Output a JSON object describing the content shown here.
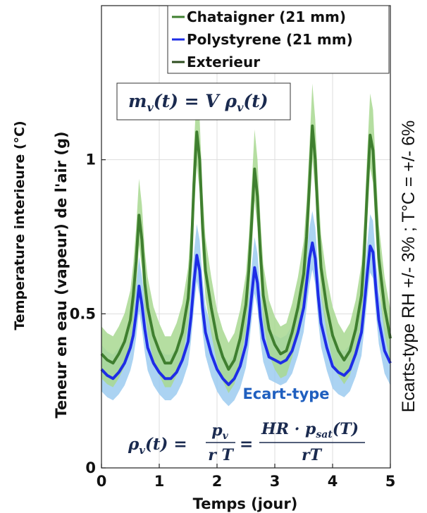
{
  "chart_data": {
    "type": "line",
    "xlabel": "Temps (jour)",
    "ylabel": "Teneur en eau (vapeur) de l'air (g)",
    "ylabel_behind": "Temperature interieure (°C)",
    "right_note": "Ecarts-type RH  +/- 3% ; T°C = +/- 6%",
    "band_label": "Ecart-type",
    "xlim": [
      0,
      5
    ],
    "ylim": [
      0,
      1.5
    ],
    "x_ticks": [
      0,
      1,
      2,
      3,
      4,
      5
    ],
    "y_ticks": [
      0,
      0.5,
      1
    ],
    "y_tick_labels": [
      "0",
      "0.5",
      "1"
    ],
    "grid": true,
    "legend_position": "top-right",
    "formula_top": {
      "lhs": "m",
      "lhs_sub": "v",
      "lhs_arg": "(t) = V ",
      "rhs": "ρ",
      "rhs_sub": "v",
      "rhs_arg": "(t)"
    },
    "formula_bottom": {
      "lhs": "ρ",
      "lhs_sub": "v",
      "lhs_arg": "(t) =",
      "f1_num": "p",
      "f1_num_sub": "v",
      "f1_den": "r T",
      "eq": "=",
      "f2_num": "HR · p",
      "f2_num_sub": "sat",
      "f2_num_arg": "(T)",
      "f2_den": "rT"
    },
    "series": [
      {
        "name": "Chataigner (21 mm)",
        "color": "#3f7f2f",
        "band_color": "#a8d890",
        "x": [
          0,
          0.1,
          0.2,
          0.3,
          0.4,
          0.5,
          0.55,
          0.6,
          0.65,
          0.7,
          0.75,
          0.8,
          0.9,
          1.0,
          1.1,
          1.2,
          1.3,
          1.4,
          1.5,
          1.55,
          1.6,
          1.65,
          1.7,
          1.75,
          1.8,
          1.9,
          2.0,
          2.1,
          2.2,
          2.3,
          2.4,
          2.5,
          2.55,
          2.6,
          2.65,
          2.7,
          2.75,
          2.8,
          2.9,
          3.0,
          3.1,
          3.2,
          3.3,
          3.4,
          3.5,
          3.55,
          3.6,
          3.65,
          3.7,
          3.75,
          3.8,
          3.9,
          4.0,
          4.1,
          4.2,
          4.3,
          4.4,
          4.5,
          4.55,
          4.6,
          4.65,
          4.7,
          4.75,
          4.8,
          4.9,
          5.0
        ],
        "values": [
          0.37,
          0.35,
          0.34,
          0.37,
          0.41,
          0.48,
          0.56,
          0.67,
          0.82,
          0.74,
          0.6,
          0.52,
          0.43,
          0.38,
          0.34,
          0.34,
          0.38,
          0.44,
          0.55,
          0.68,
          0.92,
          1.09,
          1.0,
          0.78,
          0.64,
          0.52,
          0.42,
          0.36,
          0.32,
          0.35,
          0.42,
          0.53,
          0.64,
          0.8,
          0.97,
          0.88,
          0.7,
          0.56,
          0.45,
          0.4,
          0.37,
          0.38,
          0.44,
          0.52,
          0.63,
          0.75,
          0.92,
          1.11,
          1.0,
          0.8,
          0.65,
          0.52,
          0.43,
          0.38,
          0.35,
          0.38,
          0.45,
          0.56,
          0.7,
          0.9,
          1.08,
          1.03,
          0.85,
          0.68,
          0.52,
          0.42
        ],
        "band_halfwidth": 0.065
      },
      {
        "name": "Polystyrene (21 mm)",
        "color": "#1e2de6",
        "band_color": "#9ccbf0",
        "x": [
          0,
          0.1,
          0.2,
          0.3,
          0.4,
          0.5,
          0.55,
          0.6,
          0.65,
          0.7,
          0.75,
          0.8,
          0.9,
          1.0,
          1.1,
          1.2,
          1.3,
          1.4,
          1.5,
          1.55,
          1.6,
          1.65,
          1.7,
          1.75,
          1.8,
          1.9,
          2.0,
          2.1,
          2.2,
          2.3,
          2.4,
          2.5,
          2.55,
          2.6,
          2.65,
          2.7,
          2.75,
          2.8,
          2.9,
          3.0,
          3.1,
          3.2,
          3.3,
          3.4,
          3.5,
          3.55,
          3.6,
          3.65,
          3.7,
          3.75,
          3.8,
          3.9,
          4.0,
          4.1,
          4.2,
          4.3,
          4.4,
          4.5,
          4.55,
          4.6,
          4.65,
          4.7,
          4.75,
          4.8,
          4.9,
          5.0
        ],
        "values": [
          0.32,
          0.3,
          0.29,
          0.31,
          0.34,
          0.39,
          0.43,
          0.5,
          0.59,
          0.53,
          0.45,
          0.39,
          0.34,
          0.31,
          0.29,
          0.29,
          0.31,
          0.35,
          0.41,
          0.49,
          0.6,
          0.69,
          0.64,
          0.52,
          0.44,
          0.37,
          0.32,
          0.29,
          0.27,
          0.29,
          0.33,
          0.4,
          0.47,
          0.56,
          0.65,
          0.6,
          0.49,
          0.42,
          0.36,
          0.35,
          0.34,
          0.35,
          0.38,
          0.44,
          0.52,
          0.6,
          0.68,
          0.73,
          0.68,
          0.56,
          0.47,
          0.39,
          0.33,
          0.31,
          0.3,
          0.32,
          0.37,
          0.44,
          0.53,
          0.63,
          0.72,
          0.7,
          0.58,
          0.48,
          0.38,
          0.34
        ],
        "band_halfwidth": 0.06
      },
      {
        "name": "Exterieur",
        "color": "#2d4d1f"
      }
    ]
  }
}
